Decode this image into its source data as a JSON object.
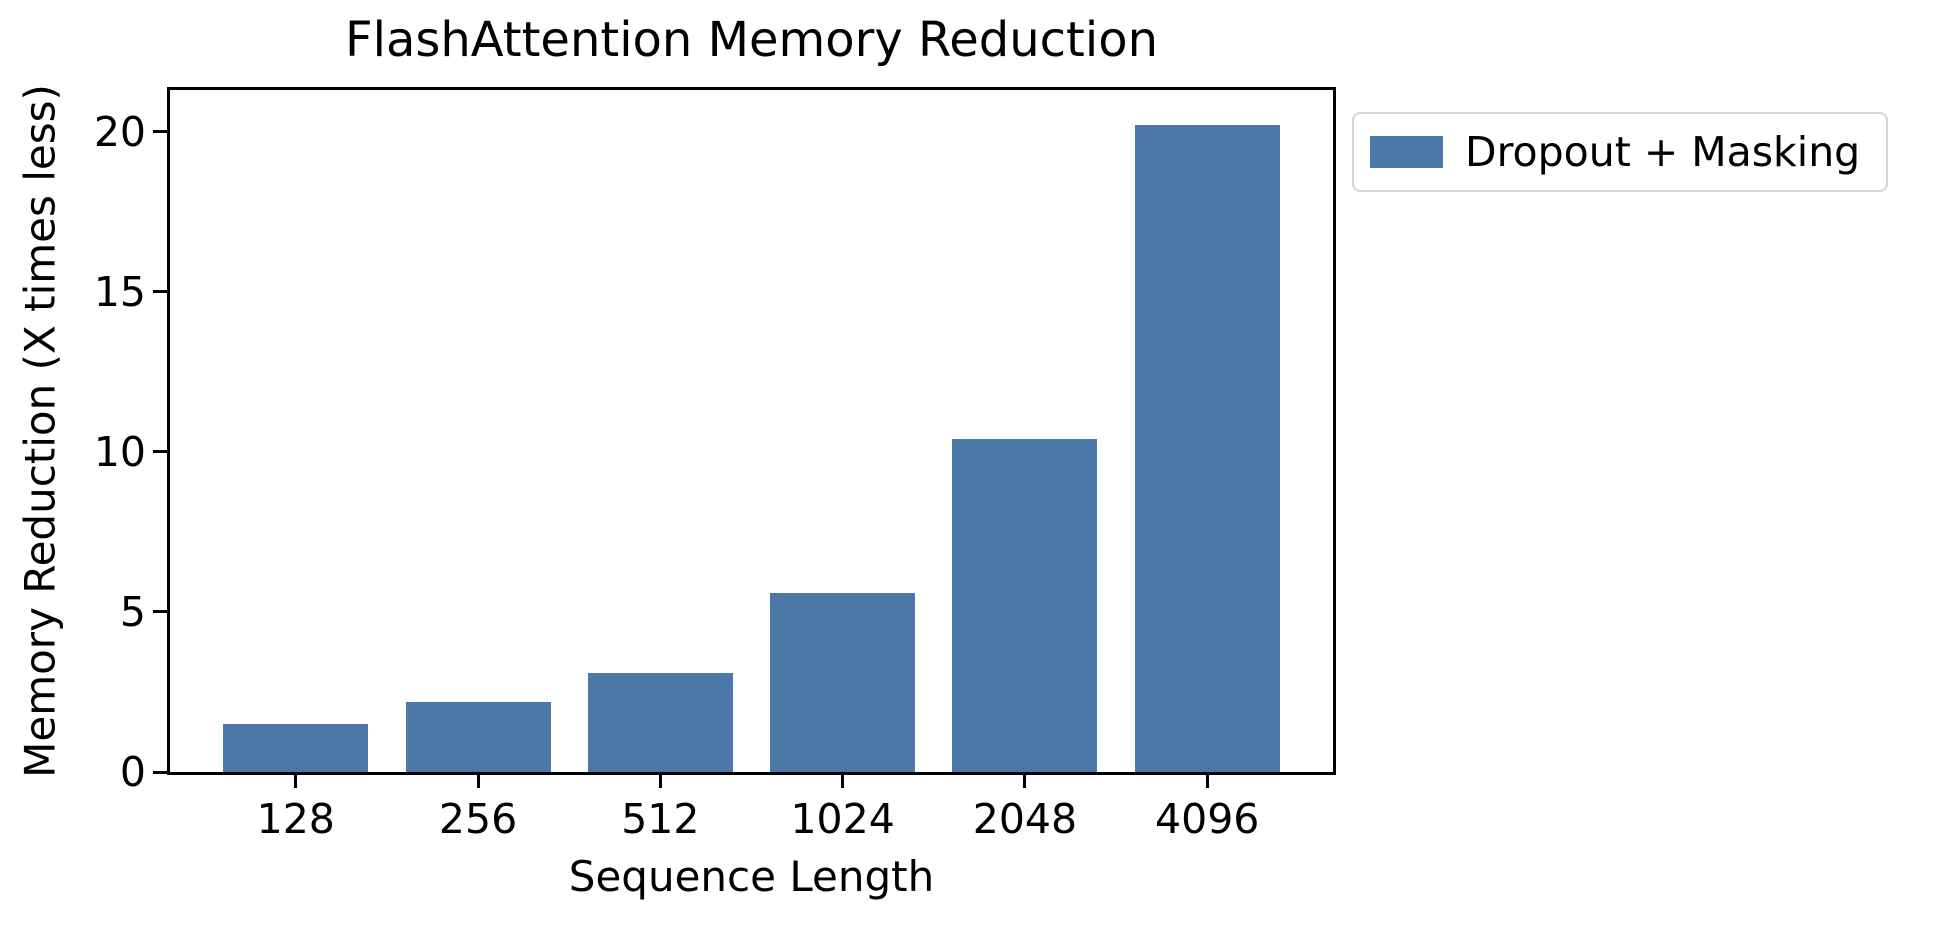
{
  "chart_data": {
    "type": "bar",
    "title": "FlashAttention Memory Reduction",
    "xlabel": "Sequence Length",
    "ylabel": "Memory Reduction (X times less)",
    "categories": [
      "128",
      "256",
      "512",
      "1024",
      "2048",
      "4096"
    ],
    "series": [
      {
        "name": "Dropout + Masking",
        "color": "#4C78A8",
        "values": [
          1.5,
          2.2,
          3.1,
          5.6,
          10.4,
          20.2
        ]
      }
    ],
    "yticks": [
      0,
      5,
      10,
      15,
      20
    ],
    "ylim": [
      0,
      21.3
    ],
    "grid": false,
    "legend_position": "outside upper right"
  },
  "legend": {
    "items": [
      {
        "label": "Dropout + Masking",
        "color": "#4C78A8"
      }
    ]
  },
  "colors": {
    "bar": "#4C78A8",
    "axis": "#000000",
    "legend_border": "#d4d4d4",
    "background": "#ffffff"
  }
}
